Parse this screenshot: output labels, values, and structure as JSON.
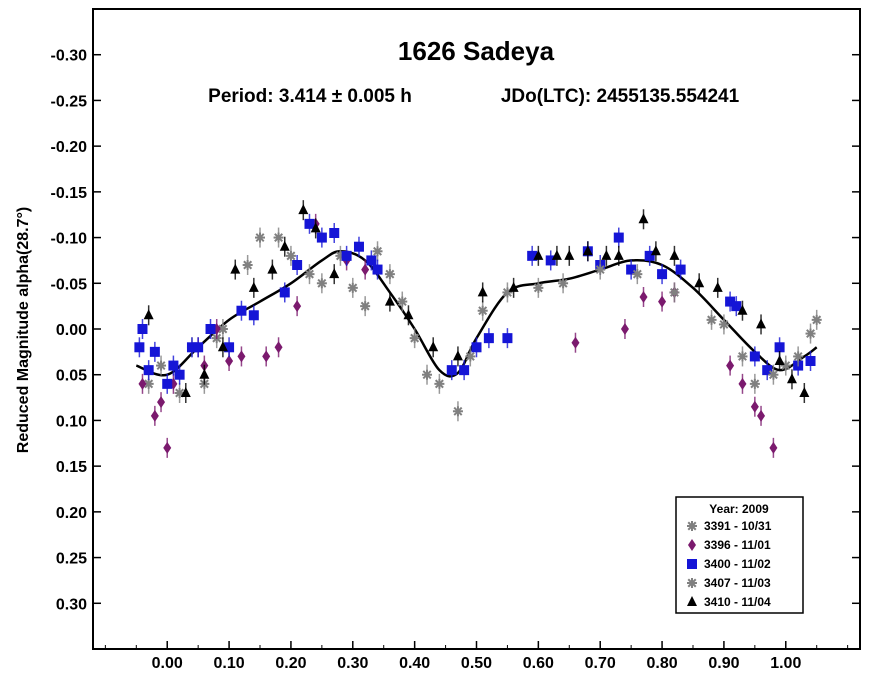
{
  "chart_data": {
    "type": "scatter",
    "title": "1626 Sadeya",
    "period_text": "Period: 3.414 ± 0.005 h",
    "epoch_text": "JDo(LTC): 2455135.554241",
    "ylabel": "Reduced Magnitude alpha(28.7°)",
    "xlabel": "",
    "xlim": [
      -0.12,
      1.12
    ],
    "ylim": [
      0.35,
      -0.35
    ],
    "y_inverted": true,
    "x_ticks": [
      "0.00",
      "0.10",
      "0.20",
      "0.30",
      "0.40",
      "0.50",
      "0.60",
      "0.70",
      "0.80",
      "0.90",
      "1.00"
    ],
    "x_tick_values": [
      0,
      0.1,
      0.2,
      0.3,
      0.4,
      0.5,
      0.6,
      0.7,
      0.8,
      0.9,
      1.0
    ],
    "y_ticks": [
      "-0.30",
      "-0.25",
      "-0.20",
      "-0.15",
      "-0.10",
      "-0.05",
      "0.00",
      "0.05",
      "0.10",
      "0.15",
      "0.20",
      "0.25",
      "0.30"
    ],
    "y_tick_values": [
      -0.3,
      -0.25,
      -0.2,
      -0.15,
      -0.1,
      -0.05,
      0.0,
      0.05,
      0.1,
      0.15,
      0.2,
      0.25,
      0.3
    ],
    "legend": {
      "title": "Year: 2009",
      "placement": "bottom-right"
    },
    "fit_curve": {
      "name": "",
      "color": "#000000",
      "x": [
        -0.05,
        0.0,
        0.05,
        0.1,
        0.15,
        0.2,
        0.25,
        0.28,
        0.32,
        0.36,
        0.4,
        0.44,
        0.47,
        0.5,
        0.55,
        0.6,
        0.65,
        0.7,
        0.75,
        0.8,
        0.85,
        0.9,
        0.95,
        0.99,
        1.03,
        1.05
      ],
      "y": [
        0.04,
        0.05,
        0.02,
        -0.01,
        -0.03,
        -0.05,
        -0.075,
        -0.085,
        -0.075,
        -0.04,
        0.0,
        0.045,
        0.048,
        0.01,
        -0.04,
        -0.05,
        -0.055,
        -0.065,
        -0.075,
        -0.07,
        -0.045,
        -0.01,
        0.025,
        0.045,
        0.03,
        0.02
      ]
    },
    "series": [
      {
        "name": "3391 - 10/31",
        "color": "#808080",
        "marker": "asterisk",
        "x": [
          -0.03,
          -0.01,
          0.02,
          0.04,
          0.06,
          0.08,
          0.09,
          0.13,
          0.15,
          0.18,
          0.2,
          0.23,
          0.25,
          0.28,
          0.3,
          0.32,
          0.34,
          0.36,
          0.38,
          0.4,
          0.42,
          0.44,
          0.47,
          0.49,
          0.51
        ],
        "y": [
          0.06,
          0.04,
          0.07,
          0.02,
          0.06,
          0.01,
          0.0,
          -0.07,
          -0.1,
          -0.1,
          -0.08,
          -0.06,
          -0.05,
          -0.08,
          -0.045,
          -0.025,
          -0.085,
          -0.06,
          -0.03,
          0.01,
          0.05,
          0.06,
          0.09,
          0.03,
          -0.02
        ]
      },
      {
        "name": "3396 - 11/01",
        "color": "#7B1A6E",
        "marker": "diamond",
        "x": [
          -0.04,
          -0.02,
          -0.01,
          0.0,
          0.01,
          0.05,
          0.06,
          0.08,
          0.1,
          0.12,
          0.16,
          0.18,
          0.21,
          0.24,
          0.29,
          0.32,
          0.66,
          0.74,
          0.77,
          0.8,
          0.82,
          0.91,
          0.93,
          0.95,
          0.96,
          0.98
        ],
        "y": [
          0.06,
          0.095,
          0.08,
          0.13,
          0.06,
          0.02,
          0.04,
          0.0,
          0.035,
          0.03,
          0.03,
          0.02,
          -0.025,
          -0.115,
          -0.075,
          -0.065,
          0.015,
          -0.0,
          -0.035,
          -0.03,
          -0.04,
          0.04,
          0.06,
          0.085,
          0.095,
          0.13
        ]
      },
      {
        "name": "3400 - 11/02",
        "color": "#1515D6",
        "marker": "square",
        "x": [
          -0.045,
          -0.04,
          -0.03,
          -0.02,
          0.0,
          0.01,
          0.02,
          0.04,
          0.05,
          0.07,
          0.1,
          0.12,
          0.14,
          0.19,
          0.21,
          0.23,
          0.25,
          0.27,
          0.29,
          0.31,
          0.33,
          0.34,
          0.46,
          0.48,
          0.5,
          0.52,
          0.55,
          0.59,
          0.62,
          0.68,
          0.7,
          0.73,
          0.75,
          0.78,
          0.8,
          0.83,
          0.91,
          0.92,
          0.95,
          0.97,
          0.99,
          1.02,
          1.04
        ],
        "y": [
          0.02,
          0.0,
          0.045,
          0.025,
          0.06,
          0.04,
          0.05,
          0.02,
          0.02,
          0.0,
          0.02,
          -0.02,
          -0.015,
          -0.04,
          -0.07,
          -0.115,
          -0.1,
          -0.105,
          -0.08,
          -0.09,
          -0.075,
          -0.065,
          0.045,
          0.045,
          0.02,
          0.01,
          0.01,
          -0.08,
          -0.075,
          -0.085,
          -0.07,
          -0.1,
          -0.065,
          -0.08,
          -0.06,
          -0.065,
          -0.03,
          -0.025,
          0.03,
          0.045,
          0.02,
          0.04,
          0.035
        ]
      },
      {
        "name": "3407 - 11/03",
        "color": "#808080",
        "marker": "asterisk",
        "x": [
          0.55,
          0.6,
          0.64,
          0.7,
          0.76,
          0.82,
          0.88,
          0.9,
          0.93,
          0.95,
          0.98,
          1.0,
          1.02,
          1.04,
          1.05
        ],
        "y": [
          -0.04,
          -0.045,
          -0.05,
          -0.065,
          -0.06,
          -0.04,
          -0.01,
          -0.005,
          0.03,
          0.06,
          0.05,
          0.04,
          0.03,
          0.005,
          -0.01
        ]
      },
      {
        "name": "3410 - 11/04",
        "color": "#000000",
        "marker": "triangle",
        "x": [
          -0.03,
          0.03,
          0.06,
          0.09,
          0.11,
          0.14,
          0.17,
          0.19,
          0.22,
          0.24,
          0.27,
          0.36,
          0.39,
          0.43,
          0.47,
          0.51,
          0.56,
          0.6,
          0.63,
          0.65,
          0.68,
          0.71,
          0.73,
          0.77,
          0.79,
          0.82,
          0.86,
          0.89,
          0.93,
          0.96,
          0.99,
          1.01,
          1.03
        ],
        "y": [
          -0.015,
          0.07,
          0.05,
          0.02,
          -0.065,
          -0.045,
          -0.065,
          -0.09,
          -0.13,
          -0.11,
          -0.06,
          -0.03,
          -0.015,
          0.02,
          0.03,
          -0.04,
          -0.045,
          -0.08,
          -0.08,
          -0.08,
          -0.085,
          -0.08,
          -0.08,
          -0.12,
          -0.085,
          -0.08,
          -0.05,
          -0.045,
          -0.02,
          -0.005,
          0.035,
          0.055,
          0.07
        ]
      }
    ]
  }
}
